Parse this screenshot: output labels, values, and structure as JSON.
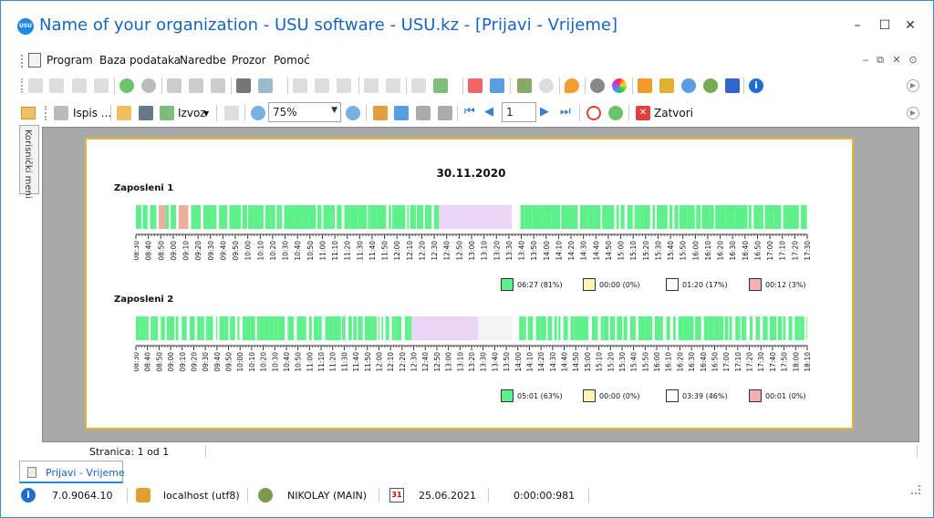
{
  "window": {
    "title": "Name of your organization - USU software - USU.kz - [Prijavi - Vrijeme]",
    "logo": "USU",
    "controls": [
      "minimize-icon",
      "maximize-icon",
      "close-icon"
    ]
  },
  "menu": {
    "items": [
      "Program",
      "Baza podataka",
      "Naredbe",
      "Prozor",
      "Pomoć"
    ],
    "mdi_controls": [
      "‒",
      "⧉",
      "✕",
      "⊙"
    ]
  },
  "toolbar2": {
    "print_label": "Ispis ...",
    "export_label": "Izvoz",
    "zoom_value": "75%",
    "page_value": "1",
    "close_label": "Zatvori"
  },
  "sidebar": {
    "tab_label": "Korisnički meni"
  },
  "report": {
    "date": "30.11.2020",
    "employees": [
      {
        "name": "Zaposleni 1",
        "ticks": [
          "08:30",
          "08:40",
          "08:50",
          "09:00",
          "09:10",
          "09:20",
          "09:30",
          "09:40",
          "09:50",
          "10:00",
          "10:10",
          "10:20",
          "10:30",
          "10:40",
          "10:50",
          "11:00",
          "11:10",
          "11:20",
          "11:30",
          "11:40",
          "11:50",
          "12:00",
          "12:10",
          "12:20",
          "12:30",
          "12:40",
          "12:50",
          "13:00",
          "13:10",
          "13:20",
          "13:30",
          "13:40",
          "13:50",
          "14:00",
          "14:10",
          "14:20",
          "14:30",
          "14:40",
          "14:50",
          "15:00",
          "15:10",
          "15:20",
          "15:30",
          "15:40",
          "15:50",
          "16:00",
          "16:10",
          "16:20",
          "16:30",
          "16:40",
          "16:50",
          "17:00",
          "17:10",
          "17:20",
          "17:30"
        ],
        "legend": [
          {
            "color": "#5ef08a",
            "text": "06:27 (81%)"
          },
          {
            "color": "#fdf5b5",
            "text": "00:00 (0%)"
          },
          {
            "color": "#ffffff",
            "text": "01:20 (17%)"
          },
          {
            "color": "#f2b0b0",
            "text": "00:12 (3%)"
          }
        ]
      },
      {
        "name": "Zaposleni 2",
        "ticks": [
          "08:30",
          "08:40",
          "08:50",
          "09:00",
          "09:10",
          "09:20",
          "09:30",
          "09:40",
          "09:50",
          "10:00",
          "10:10",
          "10:20",
          "10:30",
          "10:40",
          "10:50",
          "11:00",
          "11:10",
          "11:20",
          "11:30",
          "11:40",
          "11:50",
          "12:00",
          "12:10",
          "12:20",
          "12:30",
          "12:40",
          "12:50",
          "13:00",
          "13:10",
          "13:20",
          "13:30",
          "13:40",
          "13:50",
          "14:00",
          "14:10",
          "14:20",
          "14:30",
          "14:40",
          "14:50",
          "15:00",
          "15:10",
          "15:20",
          "15:30",
          "15:40",
          "15:50",
          "16:00",
          "16:10",
          "16:20",
          "16:30",
          "16:40",
          "16:50",
          "17:00",
          "17:10",
          "17:20",
          "17:30",
          "17:40",
          "17:50",
          "18:00",
          "18:10"
        ],
        "legend": [
          {
            "color": "#5ef08a",
            "text": "05:01 (63%)"
          },
          {
            "color": "#fdf5b5",
            "text": "00:00 (0%)"
          },
          {
            "color": "#ffffff",
            "text": "03:39 (46%)"
          },
          {
            "color": "#f2b0b0",
            "text": "00:01 (0%)"
          }
        ]
      }
    ]
  },
  "status": {
    "page_info": "Stranica: 1 od 1"
  },
  "doc_tab": {
    "label": "Prijavi - Vrijeme"
  },
  "bottom": {
    "version": "7.0.9064.10",
    "database": "localhost (utf8)",
    "user": "NIKOLAY (MAIN)",
    "date": "25.06.2021",
    "timer": "0:00:00:981",
    "calendar_day": "31"
  },
  "colors": {
    "active": "#5ef08a",
    "pause": "#ecd6f7",
    "accent": "#1565c0"
  }
}
